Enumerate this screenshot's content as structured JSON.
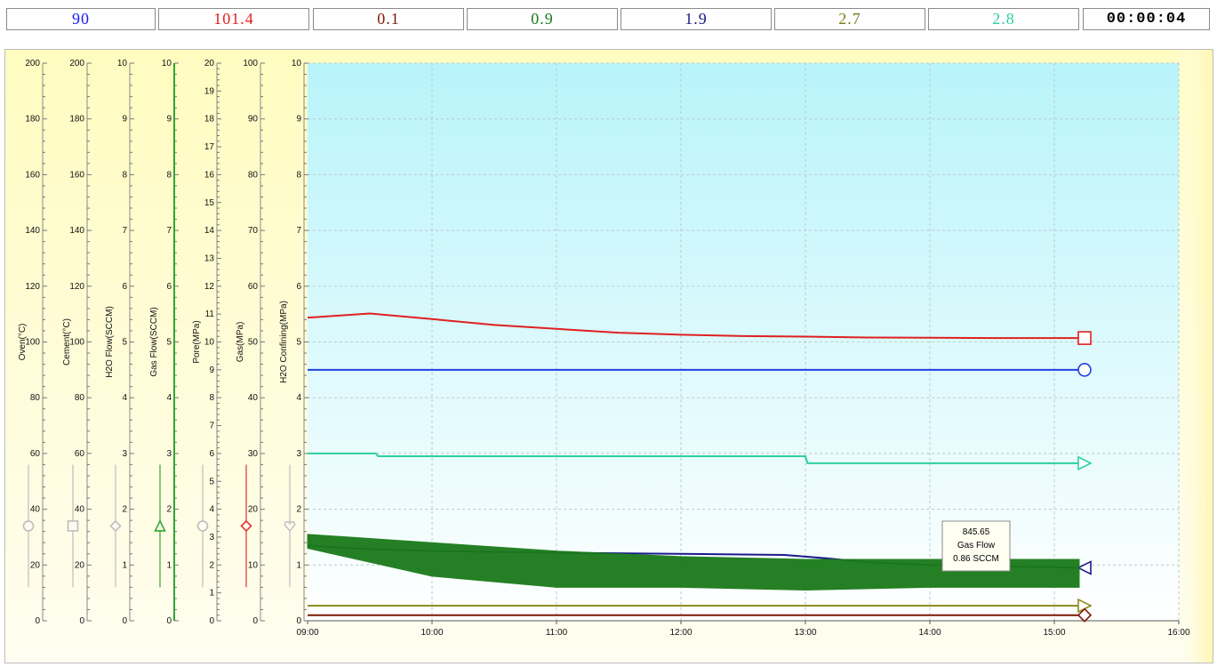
{
  "readouts": [
    {
      "value": "90",
      "color": "#1a1aff"
    },
    {
      "value": "101.4",
      "color": "#e02020"
    },
    {
      "value": "0.1",
      "color": "#7a1a05"
    },
    {
      "value": "0.9",
      "color": "#1a7a1a"
    },
    {
      "value": "1.9",
      "color": "#1a1a8c"
    },
    {
      "value": "2.7",
      "color": "#7a7a1a"
    },
    {
      "value": "2.8",
      "color": "#2ecfa0"
    },
    {
      "value": "00:00:04",
      "color": "#000000"
    }
  ],
  "tooltip": {
    "value": "845.65",
    "series": "Gas Flow",
    "reading": "0.86 SCCM"
  },
  "chart_data": {
    "type": "line",
    "x_ticks": [
      "09:00",
      "10:00",
      "11:00",
      "12:00",
      "13:00",
      "14:00",
      "15:00",
      "16:00"
    ],
    "xlim": [
      "09:00",
      "16:00"
    ],
    "grid": true,
    "axes": [
      {
        "label": "Oven(°C)",
        "ticks": [
          "0",
          "20",
          "40",
          "60",
          "80",
          "100",
          "120",
          "140",
          "160",
          "180",
          "200"
        ],
        "ylim": [
          0,
          200
        ],
        "slider": 34,
        "marker": "circle",
        "color": "#bdbdbd"
      },
      {
        "label": "Cement(°C)",
        "ticks": [
          "0",
          "20",
          "40",
          "60",
          "80",
          "100",
          "120",
          "140",
          "160",
          "180",
          "200"
        ],
        "ylim": [
          0,
          200
        ],
        "slider": 34,
        "marker": "square",
        "color": "#bdbdbd"
      },
      {
        "label": "H2O Flow(SCCM)",
        "ticks": [
          "0",
          "1",
          "2",
          "3",
          "4",
          "5",
          "6",
          "7",
          "8",
          "9",
          "10"
        ],
        "ylim": [
          0,
          10
        ],
        "slider": 1.7,
        "marker": "diamond",
        "color": "#bdbdbd"
      },
      {
        "label": "Gas Flow(SCCM)",
        "ticks": [
          "0",
          "1",
          "2",
          "3",
          "4",
          "5",
          "6",
          "7",
          "8",
          "9",
          "10"
        ],
        "ylim": [
          0,
          10
        ],
        "slider": 1.7,
        "marker": "triangle-up",
        "color": "#2ea82e"
      },
      {
        "label": "Pore(MPa)",
        "ticks": [
          "0",
          "1",
          "2",
          "3",
          "4",
          "5",
          "6",
          "7",
          "8",
          "9",
          "10",
          "11",
          "12",
          "13",
          "14",
          "15",
          "16",
          "17",
          "18",
          "19",
          "20"
        ],
        "ylim": [
          0,
          20
        ],
        "slider": 3.4,
        "marker": "circle",
        "color": "#bdbdbd"
      },
      {
        "label": "Gas(MPa)",
        "ticks": [
          "0",
          "10",
          "20",
          "30",
          "40",
          "50",
          "60",
          "70",
          "80",
          "90",
          "100"
        ],
        "ylim": [
          0,
          100
        ],
        "slider": 17,
        "marker": "diamond",
        "color": "#e03030"
      },
      {
        "label": "H2O Confining(MPa)",
        "ticks": [
          "0",
          "1",
          "2",
          "3",
          "4",
          "5",
          "6",
          "7",
          "8",
          "9",
          "10"
        ],
        "ylim": [
          0,
          10
        ],
        "slider": 1.7,
        "marker": "heart",
        "color": "#bdbdbd"
      }
    ],
    "series": [
      {
        "color": "#e02020",
        "axis": 1,
        "marker": "square",
        "x": [
          "09:00",
          "09:30",
          "10:00",
          "10:30",
          "11:00",
          "11:30",
          "12:00",
          "12:30",
          "13:00",
          "13:30",
          "14:00",
          "14:30",
          "15:00",
          "15:12"
        ],
        "values": [
          108.7,
          110.2,
          108.2,
          106.1,
          104.7,
          103.3,
          102.6,
          102.1,
          101.9,
          101.6,
          101.5,
          101.4,
          101.4,
          101.4
        ]
      },
      {
        "color": "#2040e0",
        "axis": 0,
        "marker": "circle",
        "x": [
          "09:00",
          "15:12"
        ],
        "values": [
          90,
          90
        ]
      },
      {
        "color": "#2ecfa0",
        "axis": 4,
        "marker": "triangle-right",
        "x": [
          "09:00",
          "09:33",
          "09:34",
          "13:00",
          "13:01",
          "15:12"
        ],
        "values": [
          6.0,
          6.0,
          5.9,
          5.9,
          5.65,
          5.65
        ]
      },
      {
        "color": "#1a1a8c",
        "axis": 2,
        "marker": "triangle-left",
        "x": [
          "09:00",
          "09:20",
          "10:00",
          "11:00",
          "12:00",
          "12:50",
          "13:10",
          "13:30",
          "14:00",
          "14:30",
          "15:12"
        ],
        "values": [
          1.35,
          1.3,
          1.25,
          1.22,
          1.2,
          1.18,
          1.12,
          1.05,
          1.0,
          0.98,
          0.95
        ]
      },
      {
        "color": "#1a7a1a",
        "axis": 3,
        "marker": "none",
        "band": true,
        "x": [
          "09:00",
          "10:00",
          "11:00",
          "12:00",
          "13:00",
          "14:00",
          "15:12"
        ],
        "lower": [
          1.3,
          0.8,
          0.6,
          0.6,
          0.55,
          0.6,
          0.6
        ],
        "upper": [
          1.55,
          1.4,
          1.25,
          1.15,
          1.1,
          1.1,
          1.1
        ]
      },
      {
        "color": "#8a8a1a",
        "axis": 6,
        "marker": "triangle-right",
        "x": [
          "09:00",
          "15:12"
        ],
        "values": [
          0.27,
          0.27
        ]
      },
      {
        "color": "#7a1a05",
        "axis": 2,
        "marker": "diamond",
        "x": [
          "09:00",
          "15:12"
        ],
        "values": [
          0.1,
          0.1
        ]
      }
    ]
  }
}
